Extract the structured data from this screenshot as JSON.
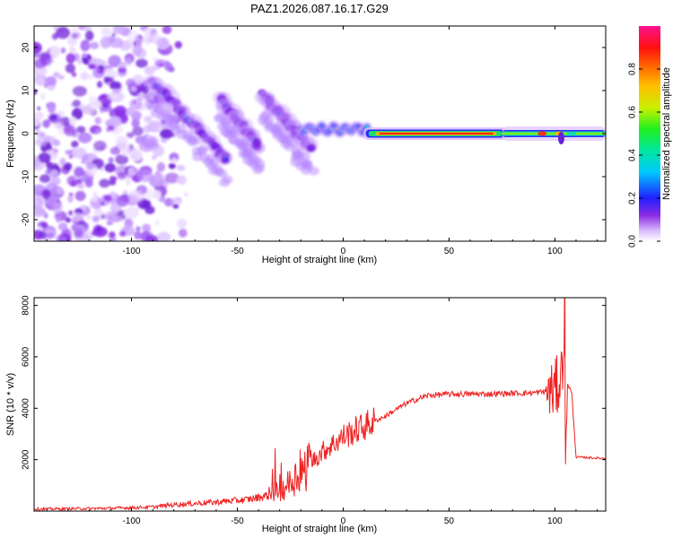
{
  "figure_title": "PAZ1.2026.087.16.17.G29",
  "chart_data": [
    {
      "type": "heatmap",
      "xlabel": "Height of straight line (km)",
      "ylabel": "Frequency (Hz)",
      "xlim": [
        -146,
        124
      ],
      "ylim": [
        -25,
        25
      ],
      "xticks": [
        -100,
        -50,
        0,
        50,
        100
      ],
      "yticks": [
        -20,
        -10,
        0,
        10,
        20
      ],
      "colorbar": {
        "label": "Normalized spectral amplitude",
        "range": [
          0,
          1
        ],
        "ticks": [
          "0.0",
          "0.2",
          "0.4",
          "0.6",
          "0.8"
        ]
      },
      "features": [
        {
          "x_range": [
            -146,
            -90
          ],
          "freq_range": [
            -25,
            25
          ],
          "amplitude": 0.1,
          "note": "scattered noise"
        },
        {
          "x_range": [
            -90,
            -55
          ],
          "freq_start": 12,
          "freq_end": -6,
          "amplitude": 0.25
        },
        {
          "x_range": [
            -58,
            -40
          ],
          "freq_start": 8,
          "freq_end": -3,
          "amplitude": 0.22
        },
        {
          "x_range": [
            -38,
            -15
          ],
          "freq_start": 9,
          "freq_end": -4,
          "amplitude": 0.2
        },
        {
          "x_range": [
            -20,
            12
          ],
          "freq_center": 1,
          "amplitude": 0.4
        },
        {
          "x_range": [
            12,
            75
          ],
          "freq_center": 0,
          "amplitude": 0.95
        },
        {
          "x_range": [
            75,
            124
          ],
          "freq_center": 0,
          "amplitude": 0.55
        }
      ]
    },
    {
      "type": "line",
      "xlabel": "Height of straight line (km)",
      "ylabel": "SNR (10 * v/v)",
      "xlim": [
        -146,
        124
      ],
      "ylim": [
        0,
        8300
      ],
      "xticks": [
        -100,
        -50,
        0,
        50,
        100
      ],
      "yticks": [
        2000,
        4000,
        6000,
        8000
      ],
      "series": [
        {
          "name": "SNR",
          "color": "#ee2222",
          "x": [
            -146,
            -130,
            -110,
            -90,
            -80,
            -60,
            -45,
            -35,
            -28,
            -20,
            -10,
            0,
            10,
            20,
            30,
            40,
            50,
            60,
            70,
            80,
            90,
            96,
            100,
            103,
            104,
            104.7,
            105,
            106,
            108,
            110,
            124
          ],
          "y": [
            80,
            90,
            110,
            160,
            250,
            350,
            450,
            620,
            900,
            1500,
            2300,
            2900,
            3300,
            3700,
            4200,
            4500,
            4550,
            4550,
            4560,
            4580,
            4600,
            4650,
            4700,
            5200,
            6800,
            8300,
            1600,
            5000,
            4550,
            2100,
            2050
          ]
        }
      ]
    }
  ]
}
